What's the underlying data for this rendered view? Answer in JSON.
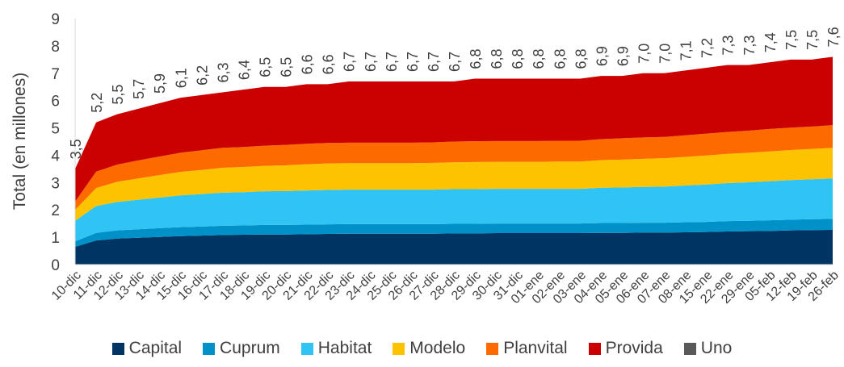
{
  "chart_data": {
    "type": "area",
    "stacked": true,
    "ylabel": "Total (en millones)",
    "xlabel": "",
    "ylim": [
      0,
      9
    ],
    "yticks": [
      0,
      1,
      2,
      3,
      4,
      5,
      6,
      7,
      8,
      9
    ],
    "grid": false,
    "legend_position": "bottom",
    "categories": [
      "10-dic",
      "11-dic",
      "12-dic",
      "13-dic",
      "14-dic",
      "15-dic",
      "16-dic",
      "17-dic",
      "18-dic",
      "19-dic",
      "20-dic",
      "21-dic",
      "22-dic",
      "23-dic",
      "24-dic",
      "25-dic",
      "26-dic",
      "27-dic",
      "28-dic",
      "29-dic",
      "30-dic",
      "31-dic",
      "01-ene",
      "02-ene",
      "03-ene",
      "04-ene",
      "05-ene",
      "06-ene",
      "07-ene",
      "08-ene",
      "15-ene",
      "22-ene",
      "29-ene",
      "05-feb",
      "12-feb",
      "19-feb",
      "26-feb"
    ],
    "totals": [
      3.5,
      5.2,
      5.5,
      5.7,
      5.9,
      6.1,
      6.2,
      6.3,
      6.4,
      6.5,
      6.5,
      6.6,
      6.6,
      6.7,
      6.7,
      6.7,
      6.7,
      6.7,
      6.7,
      6.8,
      6.8,
      6.8,
      6.8,
      6.8,
      6.8,
      6.9,
      6.9,
      7.0,
      7.0,
      7.1,
      7.2,
      7.3,
      7.3,
      7.4,
      7.5,
      7.5,
      7.6
    ],
    "total_labels": [
      "3,5",
      "5,2",
      "5,5",
      "5,7",
      "5,9",
      "6,1",
      "6,2",
      "6,3",
      "6,4",
      "6,5",
      "6,5",
      "6,6",
      "6,6",
      "6,7",
      "6,7",
      "6,7",
      "6,7",
      "6,7",
      "6,7",
      "6,8",
      "6,8",
      "6,8",
      "6,8",
      "6,8",
      "6,8",
      "6,9",
      "6,9",
      "7,0",
      "7,0",
      "7,1",
      "7,2",
      "7,3",
      "7,3",
      "7,4",
      "7,5",
      "7,5",
      "7,6"
    ],
    "series": [
      {
        "name": "Capital",
        "color": "#003462",
        "values": [
          0.65,
          0.88,
          0.95,
          0.98,
          1.01,
          1.04,
          1.06,
          1.08,
          1.09,
          1.1,
          1.1,
          1.11,
          1.12,
          1.13,
          1.13,
          1.13,
          1.13,
          1.13,
          1.14,
          1.14,
          1.15,
          1.15,
          1.15,
          1.15,
          1.15,
          1.16,
          1.16,
          1.17,
          1.17,
          1.18,
          1.19,
          1.21,
          1.22,
          1.23,
          1.25,
          1.26,
          1.27
        ]
      },
      {
        "name": "Cuprum",
        "color": "#0091c8",
        "values": [
          0.2,
          0.28,
          0.3,
          0.31,
          0.32,
          0.33,
          0.33,
          0.34,
          0.34,
          0.35,
          0.35,
          0.35,
          0.35,
          0.35,
          0.35,
          0.35,
          0.35,
          0.35,
          0.35,
          0.35,
          0.35,
          0.35,
          0.35,
          0.35,
          0.35,
          0.36,
          0.36,
          0.36,
          0.36,
          0.37,
          0.37,
          0.38,
          0.38,
          0.39,
          0.39,
          0.4,
          0.4
        ]
      },
      {
        "name": "Habitat",
        "color": "#30c4f4",
        "values": [
          0.75,
          0.98,
          1.04,
          1.08,
          1.12,
          1.16,
          1.19,
          1.21,
          1.22,
          1.23,
          1.24,
          1.25,
          1.26,
          1.26,
          1.26,
          1.26,
          1.26,
          1.26,
          1.27,
          1.27,
          1.27,
          1.27,
          1.27,
          1.27,
          1.27,
          1.29,
          1.3,
          1.31,
          1.32,
          1.34,
          1.37,
          1.39,
          1.41,
          1.43,
          1.45,
          1.46,
          1.48
        ]
      },
      {
        "name": "Modelo",
        "color": "#fdc300",
        "values": [
          0.4,
          0.66,
          0.74,
          0.78,
          0.82,
          0.86,
          0.88,
          0.91,
          0.92,
          0.93,
          0.94,
          0.96,
          0.97,
          0.97,
          0.97,
          0.97,
          0.97,
          0.98,
          0.98,
          0.99,
          0.99,
          0.99,
          0.99,
          1,
          1,
          1.01,
          1.02,
          1.03,
          1.04,
          1.05,
          1.06,
          1.07,
          1.08,
          1.09,
          1.1,
          1.11,
          1.12
        ]
      },
      {
        "name": "Planvital",
        "color": "#fd6b00",
        "values": [
          0.3,
          0.6,
          0.63,
          0.66,
          0.68,
          0.7,
          0.72,
          0.73,
          0.73,
          0.74,
          0.75,
          0.75,
          0.75,
          0.75,
          0.75,
          0.75,
          0.75,
          0.75,
          0.76,
          0.76,
          0.76,
          0.76,
          0.76,
          0.76,
          0.76,
          0.77,
          0.78,
          0.78,
          0.78,
          0.79,
          0.8,
          0.8,
          0.81,
          0.82,
          0.82,
          0.82,
          0.83
        ]
      },
      {
        "name": "Provida",
        "color": "#cb0000",
        "values": [
          1.2,
          1.8,
          1.84,
          1.89,
          1.95,
          2.01,
          2.02,
          2.03,
          2.1,
          2.15,
          2.12,
          2.18,
          2.15,
          2.24,
          2.24,
          2.24,
          2.24,
          2.23,
          2.2,
          2.29,
          2.28,
          2.28,
          2.28,
          2.27,
          2.27,
          2.31,
          2.28,
          2.35,
          2.33,
          2.37,
          2.41,
          2.45,
          2.4,
          2.44,
          2.49,
          2.45,
          2.5
        ]
      },
      {
        "name": "Uno",
        "color": "#595959",
        "values": [
          0,
          0,
          0,
          0,
          0,
          0,
          0,
          0,
          0,
          0,
          0,
          0,
          0,
          0,
          0,
          0,
          0,
          0,
          0,
          0,
          0,
          0,
          0,
          0,
          0,
          0,
          0,
          0,
          0,
          0,
          0,
          0,
          0,
          0,
          0,
          0,
          0
        ]
      }
    ]
  }
}
